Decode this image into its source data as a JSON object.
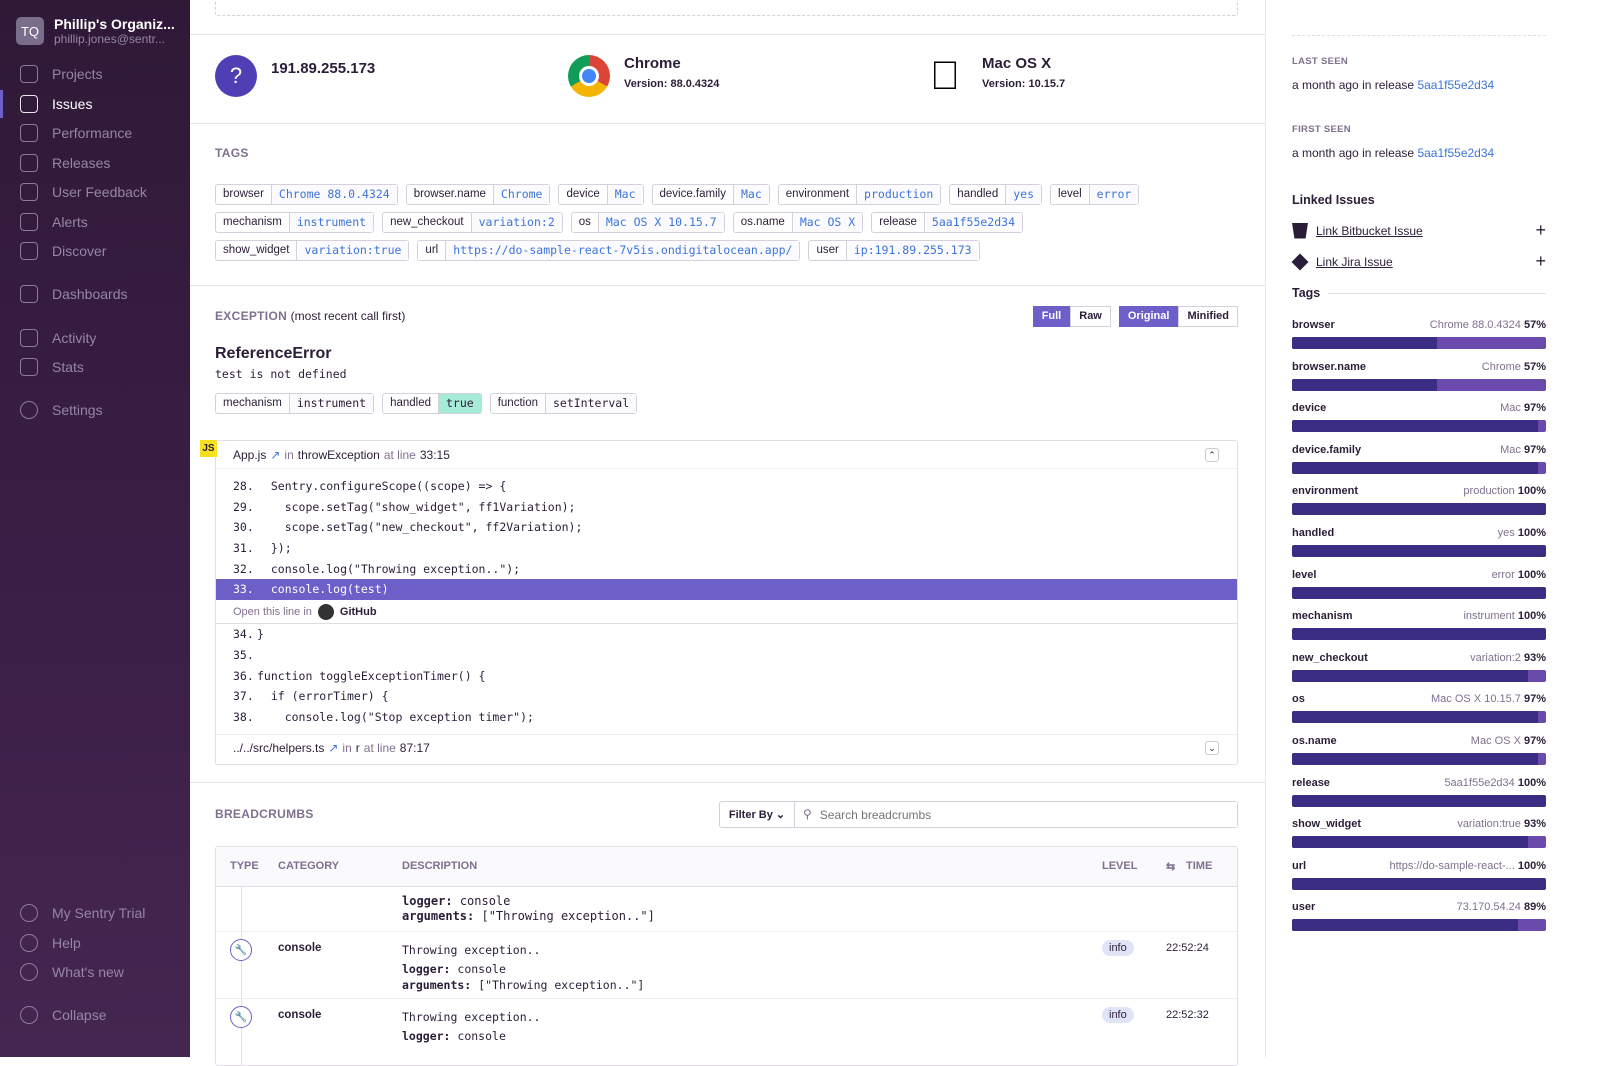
{
  "sidebar": {
    "avatar": "TQ",
    "org": "Phillip's Organiz...",
    "email": "phillip.jones@sentr...",
    "items": [
      {
        "label": "Projects",
        "icon": "code-icon"
      },
      {
        "label": "Issues",
        "icon": "issues-icon",
        "active": true
      },
      {
        "label": "Performance",
        "icon": "lightning-icon"
      },
      {
        "label": "Releases",
        "icon": "releases-icon"
      },
      {
        "label": "User Feedback",
        "icon": "feedback-icon"
      },
      {
        "label": "Alerts",
        "icon": "siren-icon"
      },
      {
        "label": "Discover",
        "icon": "telescope-icon"
      },
      {
        "label": "Dashboards",
        "icon": "chart-icon"
      },
      {
        "label": "Activity",
        "icon": "list-icon"
      },
      {
        "label": "Stats",
        "icon": "stats-icon"
      },
      {
        "label": "Settings",
        "icon": "gear-icon"
      }
    ],
    "bottom": [
      {
        "label": "My Sentry Trial",
        "icon": "lightning-circle-icon"
      },
      {
        "label": "Help",
        "icon": "help-icon"
      },
      {
        "label": "What's new",
        "icon": "broadcast-icon"
      },
      {
        "label": "Collapse",
        "icon": "collapse-icon"
      }
    ]
  },
  "context": {
    "user": {
      "ip": "191.89.255.173",
      "icon": "question-icon"
    },
    "browser": {
      "name": "Chrome",
      "version_label": "Version:",
      "version": "88.0.4324"
    },
    "os": {
      "name": "Mac OS X",
      "version_label": "Version:",
      "version": "10.15.7"
    }
  },
  "tags": {
    "heading": "TAGS",
    "items": [
      [
        "browser",
        "Chrome 88.0.4324"
      ],
      [
        "browser.name",
        "Chrome"
      ],
      [
        "device",
        "Mac"
      ],
      [
        "device.family",
        "Mac"
      ],
      [
        "environment",
        "production"
      ],
      [
        "handled",
        "yes"
      ],
      [
        "level",
        "error"
      ],
      [
        "mechanism",
        "instrument"
      ],
      [
        "new_checkout",
        "variation:2"
      ],
      [
        "os",
        "Mac OS X 10.15.7"
      ],
      [
        "os.name",
        "Mac OS X"
      ],
      [
        "release",
        "5aa1f55e2d34"
      ],
      [
        "show_widget",
        "variation:true"
      ],
      [
        "url",
        "https://do-sample-react-7v5is.ondigitalocean.app/"
      ],
      [
        "user",
        "ip:191.89.255.173"
      ]
    ]
  },
  "exception": {
    "heading": "EXCEPTION",
    "subheading": "(most recent call first)",
    "buttons": [
      "Full",
      "Raw",
      "Original",
      "Minified"
    ],
    "type": "ReferenceError",
    "message": "test is not defined",
    "mechanism": [
      [
        "mechanism",
        "instrument"
      ],
      [
        "handled",
        "true"
      ],
      [
        "function",
        "setInterval"
      ]
    ],
    "frame": {
      "badge": "JS",
      "file": "App.js",
      "in": "in",
      "function": "throwException",
      "at": "at line",
      "line": "33:15",
      "lines": [
        [
          "28.",
          "  Sentry.configureScope((scope) => {"
        ],
        [
          "29.",
          "    scope.setTag(\"show_widget\", ff1Variation);"
        ],
        [
          "30.",
          "    scope.setTag(\"new_checkout\", ff2Variation);"
        ],
        [
          "31.",
          "  });"
        ],
        [
          "32.",
          "  console.log(\"Throwing exception..\");"
        ],
        [
          "33.",
          "  console.log(test)"
        ]
      ],
      "open_in": "Open this line in",
      "github": "GitHub",
      "after": [
        [
          "34.",
          "}"
        ],
        [
          "35.",
          ""
        ],
        [
          "36.",
          "function toggleExceptionTimer() {"
        ],
        [
          "37.",
          "  if (errorTimer) {"
        ],
        [
          "38.",
          "    console.log(\"Stop exception timer\");"
        ]
      ]
    },
    "frame2": {
      "file": "../../src/helpers.ts",
      "in": "in",
      "function": "r",
      "at": "at line",
      "line": "87:17"
    }
  },
  "breadcrumbs": {
    "heading": "BREADCRUMBS",
    "filter": "Filter By",
    "search_placeholder": "Search breadcrumbs",
    "columns": [
      "TYPE",
      "CATEGORY",
      "DESCRIPTION",
      "LEVEL",
      "TIME"
    ],
    "partial": {
      "logger_label": "logger:",
      "logger": "console",
      "args_label": "arguments:",
      "args": "[\"Throwing exception..\"]"
    },
    "rows": [
      {
        "category": "console",
        "message": "Throwing exception..",
        "logger_label": "logger:",
        "logger": "console",
        "args_label": "arguments:",
        "args": "[\"Throwing exception..\"]",
        "level": "info",
        "time": "22:52:24"
      },
      {
        "category": "console",
        "message": "Throwing exception..",
        "logger_label": "logger:",
        "logger": "console",
        "level": "info",
        "time": "22:52:32"
      }
    ]
  },
  "right": {
    "last_seen_label": "LAST SEEN",
    "last_seen": "a month ago",
    "in_release": "in release",
    "last_release": "5aa1f55e2d34",
    "first_seen_label": "FIRST SEEN",
    "first_seen": "a month ago",
    "first_release": "5aa1f55e2d34",
    "linked_heading": "Linked Issues",
    "links": [
      "Link Bitbucket Issue",
      "Link Jira Issue"
    ],
    "tags_heading": "Tags",
    "tags": [
      {
        "key": "browser",
        "value": "Chrome 88.0.4324",
        "pct": 57
      },
      {
        "key": "browser.name",
        "value": "Chrome",
        "pct": 57
      },
      {
        "key": "device",
        "value": "Mac",
        "pct": 97
      },
      {
        "key": "device.family",
        "value": "Mac",
        "pct": 97
      },
      {
        "key": "environment",
        "value": "production",
        "pct": 100
      },
      {
        "key": "handled",
        "value": "yes",
        "pct": 100
      },
      {
        "key": "level",
        "value": "error",
        "pct": 100
      },
      {
        "key": "mechanism",
        "value": "instrument",
        "pct": 100
      },
      {
        "key": "new_checkout",
        "value": "variation:2",
        "pct": 93
      },
      {
        "key": "os",
        "value": "Mac OS X 10.15.7",
        "pct": 97
      },
      {
        "key": "os.name",
        "value": "Mac OS X",
        "pct": 97
      },
      {
        "key": "release",
        "value": "5aa1f55e2d34",
        "pct": 100
      },
      {
        "key": "show_widget",
        "value": "variation:true",
        "pct": 93
      },
      {
        "key": "url",
        "value": "https://do-sample-react-...",
        "pct": 100
      },
      {
        "key": "user",
        "value": "73.170.54.24",
        "pct": 89
      }
    ]
  },
  "colors": {
    "accent": "#6c5fc7",
    "link": "#3d74db",
    "bar_dark": "#3b2d84",
    "bar_light": "#6a4aad"
  }
}
